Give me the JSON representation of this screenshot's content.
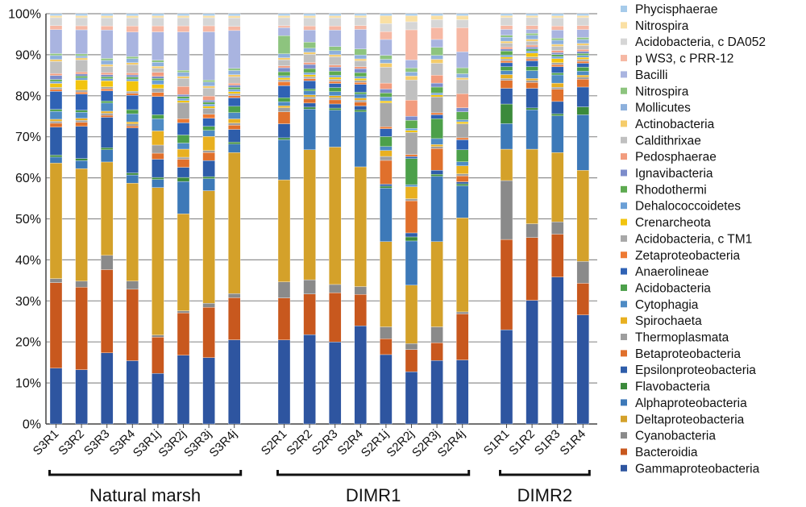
{
  "chart_data": {
    "type": "stacked-bar",
    "ylim": [
      0,
      100
    ],
    "y_ticks": [
      "0%",
      "10%",
      "20%",
      "30%",
      "40%",
      "50%",
      "60%",
      "70%",
      "80%",
      "90%",
      "100%"
    ],
    "grid": true,
    "legend_position": "right",
    "groups": [
      {
        "label": "Natural marsh",
        "samples": [
          "S3R1",
          "S3R2",
          "S3R3",
          "S3R4",
          "S3R1j",
          "S3R2j",
          "S3R3j",
          "S3R4j"
        ]
      },
      {
        "label": "DIMR1",
        "samples": [
          "S2R1",
          "S2R2",
          "S2R3",
          "S2R4",
          "S2R1j",
          "S2R2j",
          "S2R3j",
          "S2R4j"
        ]
      },
      {
        "label": "DIMR2",
        "samples": [
          "S1R1",
          "S1R2",
          "S1R3",
          "S1R4"
        ]
      }
    ],
    "series": [
      {
        "name": "Gammaproteobacteria",
        "color": "#2E55A0",
        "values": [
          14,
          13.5,
          17.5,
          15.5,
          12.5,
          17,
          16.5,
          20,
          21,
          22,
          20,
          25,
          17.5,
          13,
          16,
          16,
          24,
          31.5,
          36,
          27.5
        ]
      },
      {
        "name": "Bacteroidia",
        "color": "#C8581E",
        "values": [
          21.5,
          20.5,
          20.5,
          17.5,
          9,
          10.5,
          12.5,
          10,
          10.5,
          10,
          12,
          8,
          4,
          5.5,
          4.5,
          11.5,
          23,
          16,
          10.5,
          8
        ]
      },
      {
        "name": "Cyanobacteria",
        "color": "#8A8A8A",
        "values": [
          1,
          1.5,
          3.5,
          2,
          0.5,
          0.5,
          1,
          1,
          4,
          3.5,
          2,
          2,
          3,
          1.5,
          4,
          0.5,
          15,
          3.5,
          3,
          5.5
        ]
      },
      {
        "name": "Deltaproteobacteria",
        "color": "#D4A12A",
        "values": [
          29,
          28,
          23,
          24,
          36.5,
          24,
          28,
          33.5,
          25.5,
          32,
          33.5,
          30.5,
          21.5,
          14.5,
          21.5,
          23.5,
          8,
          19,
          17,
          23
        ]
      },
      {
        "name": "Alphaproteobacteria",
        "color": "#3D79B8",
        "values": [
          1.5,
          2,
          3,
          2,
          2,
          8,
          3,
          2,
          10,
          10,
          9,
          14,
          13.5,
          11,
          16.5,
          8,
          6.5,
          10,
          9,
          14
        ]
      },
      {
        "name": "Flavobacteria",
        "color": "#3B8A3B",
        "values": [
          0.5,
          0.5,
          0.5,
          0.5,
          0.5,
          1,
          0.5,
          0.5,
          0.5,
          0.5,
          0.5,
          0.5,
          0.5,
          1,
          0.5,
          0.5,
          5,
          0.5,
          0.5,
          2
        ]
      },
      {
        "name": "Epsilonproteobacteria",
        "color": "#2E5DAA",
        "values": [
          7,
          8,
          7.5,
          11,
          4.5,
          2.5,
          4,
          3,
          3.5,
          1,
          1,
          1,
          0.5,
          1,
          1,
          0.5,
          4,
          5,
          3,
          5
        ]
      },
      {
        "name": "Betaproteobacteria",
        "color": "#E0702C",
        "values": [
          1,
          1,
          0.5,
          0.5,
          1.5,
          2,
          2,
          1,
          3,
          1,
          1,
          1,
          6,
          8,
          5.5,
          1.5,
          2,
          1.5,
          3,
          2
        ]
      },
      {
        "name": "Thermoplasmata",
        "color": "#9E9E9E",
        "values": [
          0.5,
          0.5,
          0.5,
          0.5,
          2,
          0.5,
          0.5,
          0.5,
          1,
          0.5,
          0.5,
          0.5,
          1,
          0.5,
          0.5,
          0.5,
          0.5,
          0.5,
          0.5,
          0.5
        ]
      },
      {
        "name": "Spirochaeta",
        "color": "#E8B020",
        "values": [
          0.5,
          0.5,
          0.5,
          0.5,
          3.5,
          2,
          3.5,
          1,
          0.5,
          0.5,
          0.5,
          0.5,
          1.5,
          3,
          0.5,
          2,
          1,
          0.5,
          1,
          0.5
        ]
      },
      {
        "name": "Cytophagia",
        "color": "#4E8BC4",
        "values": [
          2,
          1.5,
          2,
          2,
          3,
          1.5,
          1.5,
          1.5,
          1,
          1,
          1,
          1,
          1,
          0.5,
          1.5,
          1,
          1,
          2,
          2,
          1
        ]
      },
      {
        "name": "Acidobacteria",
        "color": "#4CA04A",
        "values": [
          0.5,
          0.5,
          0.5,
          1,
          1,
          2,
          1,
          1.5,
          1,
          0.5,
          1,
          0.5,
          2.5,
          6.5,
          5,
          3,
          1,
          1,
          0.5,
          1
        ]
      },
      {
        "name": "Anaerolineae",
        "color": "#2F62B5",
        "values": [
          4.5,
          4,
          2.5,
          3.5,
          4.5,
          3,
          2,
          2,
          3,
          2,
          1,
          2,
          2,
          0.5,
          1,
          2.5,
          1,
          1.5,
          1.5,
          1
        ]
      },
      {
        "name": "Zetaproteobacteria",
        "color": "#EE7A33",
        "values": [
          0.5,
          0.5,
          0.5,
          0.5,
          1,
          1,
          1,
          0.5,
          1,
          0.5,
          0.5,
          0.5,
          0.5,
          0.5,
          0.5,
          0.5,
          0.5,
          0.5,
          0.5,
          0.5
        ]
      },
      {
        "name": "Acidobacteria, c TM1",
        "color": "#A8A8A8",
        "values": [
          0.5,
          0.5,
          0.5,
          0.5,
          1,
          4,
          1.5,
          0.5,
          0.5,
          0.5,
          0.5,
          0.5,
          6,
          5.5,
          4,
          3.5,
          0.5,
          0.5,
          0.5,
          0.5
        ]
      },
      {
        "name": "Crenarcheota",
        "color": "#F2C40F",
        "values": [
          1,
          2.5,
          1.5,
          2.5,
          1,
          0.5,
          0.5,
          0.5,
          0.5,
          0.5,
          0.5,
          0.5,
          0.5,
          0.5,
          0.5,
          0.5,
          0.5,
          1,
          1,
          0.5
        ]
      },
      {
        "name": "Dehalococcoidetes",
        "color": "#6A9FD6",
        "values": [
          0.5,
          0.5,
          0.5,
          0.5,
          1,
          0.5,
          0.5,
          0.5,
          0.5,
          0.5,
          0.5,
          0.5,
          1,
          0.5,
          0.5,
          0.5,
          0.5,
          0.5,
          0.5,
          0.5
        ]
      },
      {
        "name": "Rhodothermi",
        "color": "#5DAA50",
        "values": [
          0.5,
          0.5,
          0.5,
          0.5,
          0.5,
          0.5,
          0.5,
          0.5,
          1,
          1,
          1,
          1,
          1,
          2,
          1.5,
          2,
          1,
          0.5,
          0.5,
          0.5
        ]
      },
      {
        "name": "Ignavibacteria",
        "color": "#7C8CCB",
        "values": [
          1,
          0.5,
          0.5,
          0.5,
          0.5,
          0.5,
          0.5,
          0.5,
          1,
          1,
          1,
          1,
          1,
          1,
          1,
          1,
          0.5,
          0.5,
          0.5,
          0.5
        ]
      },
      {
        "name": "Pedosphaerae",
        "color": "#F29C7E",
        "values": [
          0.5,
          0.5,
          0.5,
          0.5,
          1,
          2,
          1,
          0.5,
          0.5,
          0.5,
          0.5,
          0.5,
          1.5,
          4,
          2,
          3.5,
          0.5,
          0.5,
          0.5,
          0.5
        ]
      },
      {
        "name": "Caldithrixae",
        "color": "#C0C0C0",
        "values": [
          3,
          3,
          1.5,
          2,
          1,
          2,
          2,
          1.5,
          1.5,
          2,
          2,
          1.5,
          4,
          5,
          3,
          3.5,
          1,
          1,
          1,
          1
        ]
      },
      {
        "name": "Actinobacteria",
        "color": "#F5CC6A",
        "values": [
          0.5,
          0.5,
          0.5,
          0.5,
          0.5,
          0.5,
          0.5,
          0.5,
          0.5,
          0.5,
          0.5,
          0.5,
          1,
          1,
          1,
          0.5,
          0.5,
          0.5,
          0.5,
          0.5
        ]
      },
      {
        "name": "Mollicutes",
        "color": "#8DB0DC",
        "values": [
          1,
          0.5,
          1,
          1,
          1,
          1,
          1,
          1,
          1,
          1,
          1,
          1,
          1,
          1,
          1,
          1,
          1,
          1,
          1,
          1
        ]
      },
      {
        "name": "Nitrospira",
        "color": "#8DC47E",
        "values": [
          0.5,
          0.5,
          0.5,
          0.5,
          0.5,
          0.5,
          0.5,
          0.5,
          4.5,
          1.5,
          1,
          1.5,
          1,
          1,
          2,
          1.5,
          0.5,
          0.5,
          0.5,
          0.5
        ]
      },
      {
        "name": "Bacilli",
        "color": "#A9B4E0",
        "values": [
          6,
          6,
          7,
          6,
          7,
          9.5,
          12,
          9,
          2,
          3,
          4,
          5,
          4,
          2,
          2,
          4,
          1.5,
          1,
          2,
          2
        ]
      },
      {
        "name": "p WS3, c PRR-12",
        "color": "#F6B8A4",
        "values": [
          1,
          1,
          1,
          1.5,
          1.5,
          1.5,
          1.5,
          1,
          0.5,
          1,
          1,
          1,
          2,
          7.5,
          3,
          6,
          1,
          1,
          1,
          1
        ]
      },
      {
        "name": "Acidobacteria, c DA052",
        "color": "#D6D6D6",
        "values": [
          2,
          2,
          2,
          2,
          2,
          2,
          2,
          2,
          2,
          2,
          2,
          2,
          2,
          2,
          2,
          2,
          2,
          2,
          2,
          2
        ]
      },
      {
        "name": "Nitrospira",
        "color": "#FAE0A4",
        "values": [
          0.5,
          0.5,
          0.5,
          0.5,
          0.5,
          0.5,
          0.5,
          0.5,
          0.5,
          0.5,
          0.5,
          0.5,
          2,
          1.5,
          1,
          1,
          0.5,
          0.5,
          0.5,
          0.5
        ]
      },
      {
        "name": "Phycisphaerae",
        "color": "#A6CBEA",
        "values": [
          0.5,
          0.5,
          0.5,
          0.5,
          0.5,
          0.5,
          0.5,
          0.5,
          0.5,
          0.5,
          0.5,
          0.5,
          0.5,
          0.5,
          0.5,
          0.5,
          0.5,
          0.5,
          0.5,
          0.5
        ]
      }
    ]
  }
}
